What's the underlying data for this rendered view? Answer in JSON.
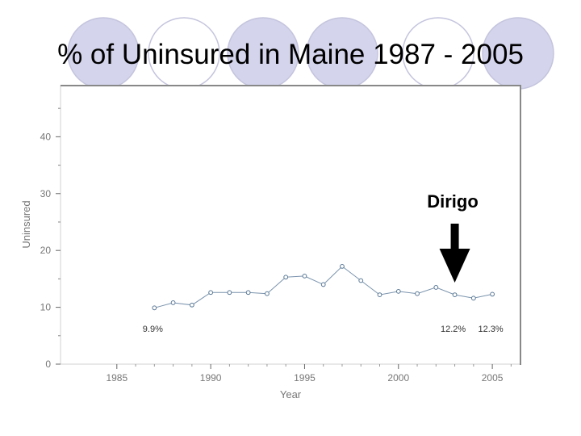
{
  "slide": {
    "title": "% of Uninsured in Maine 1987 - 2005",
    "colors": {
      "circle_fill": "#d4d4ec",
      "circle_outline": "#c4c4de",
      "line": "#7a93ad",
      "marker": "#5a7896",
      "arrow": "#000000"
    }
  },
  "chart_data": {
    "type": "line",
    "title": "",
    "xlabel": "Year",
    "ylabel": "Uninsured",
    "xlim": [
      1982,
      2006.5
    ],
    "ylim": [
      0,
      49
    ],
    "xticks": [
      1985,
      1990,
      1995,
      2000,
      2005
    ],
    "xtick_labels": [
      "1985",
      "1990",
      "1995",
      "2000",
      "2005"
    ],
    "yticks": [
      0,
      10,
      20,
      30,
      40
    ],
    "ytick_labels": [
      "0",
      "10",
      "20",
      "30",
      "40"
    ],
    "grid": false,
    "series": [
      {
        "x": [
          1987,
          1988,
          1989,
          1990,
          1991,
          1992,
          1993,
          1994,
          1995,
          1996,
          1997,
          1998,
          1999,
          2000,
          2001,
          2002,
          2003,
          2004,
          2005
        ],
        "y": [
          9.9,
          10.8,
          10.4,
          12.6,
          12.6,
          12.6,
          12.4,
          15.3,
          15.5,
          14.0,
          17.2,
          14.7,
          12.2,
          12.8,
          12.4,
          13.5,
          12.2,
          11.6,
          12.3
        ]
      }
    ],
    "data_labels": [
      {
        "x": 1987,
        "text": "9.9%"
      },
      {
        "x": 2003,
        "text": "12.2%"
      },
      {
        "x": 2005,
        "text": "12.3%"
      }
    ],
    "annotation": {
      "text": "Dirigo",
      "points_to_year": 2003
    }
  }
}
